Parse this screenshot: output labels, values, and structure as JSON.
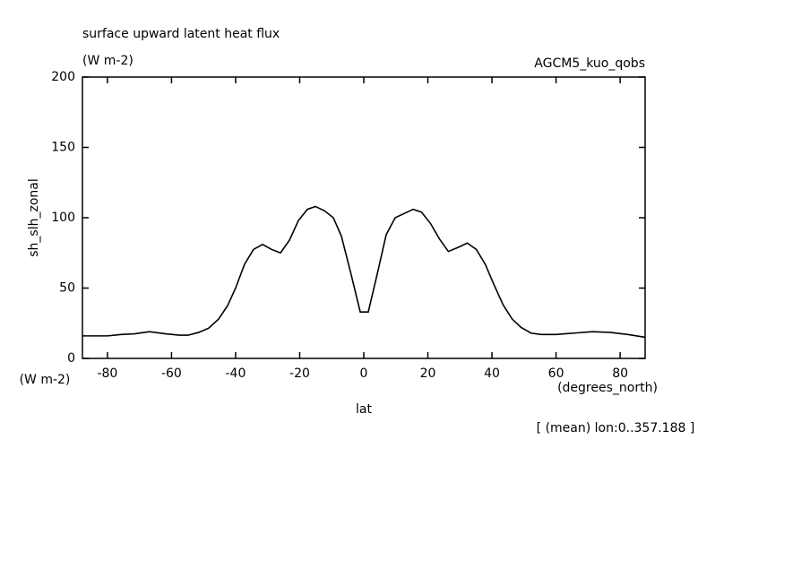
{
  "chart_data": {
    "type": "line",
    "title": "surface upward latent heat flux",
    "subtitle": "(W m-2)",
    "dataset": "AGCM5_kuo_qobs",
    "y_label": "sh_slh_zonal",
    "y_units": "(W m-2)",
    "x_label": "lat",
    "x_units": "(degrees_north)",
    "annotation": "[ (mean) lon:0..357.188 ]",
    "x": [
      -87.8,
      -80,
      -75.8,
      -71.6,
      -66.9,
      -61.8,
      -57.6,
      -54.8,
      -51.5,
      -48.4,
      -45.3,
      -42.5,
      -40,
      -37.2,
      -34.4,
      -31.6,
      -28.8,
      -26,
      -23.2,
      -20.4,
      -17.6,
      -15.1,
      -12.3,
      -9.5,
      -7,
      -4.2,
      -1.1,
      1.4,
      4.2,
      7,
      9.8,
      12.6,
      15.4,
      18,
      20.8,
      23.6,
      26.4,
      29.5,
      32.3,
      35.1,
      37.9,
      40.7,
      43.5,
      46.3,
      49.1,
      52.2,
      55.3,
      60,
      65.6,
      71.3,
      76.8,
      82.4,
      87.8
    ],
    "series": [
      {
        "name": "sh_slh_zonal",
        "color": "#000000",
        "values": [
          16,
          16,
          17,
          17.5,
          19,
          17.5,
          16.5,
          16.5,
          18.5,
          21.5,
          28,
          37.5,
          50,
          67,
          77.5,
          81,
          77.5,
          75,
          84,
          98,
          106,
          108,
          105,
          100,
          87,
          62,
          33,
          33,
          60,
          88,
          100,
          103,
          106,
          104,
          96,
          85,
          76,
          79,
          82,
          77.5,
          67,
          52,
          38,
          28,
          22,
          18,
          17,
          17,
          18,
          19,
          18.5,
          17,
          15
        ]
      }
    ],
    "xlim": [
      -87.8,
      87.8
    ],
    "ylim": [
      0,
      200
    ],
    "xticks": [
      -80,
      -60,
      -40,
      -20,
      0,
      20,
      40,
      60,
      80
    ],
    "yticks": [
      0,
      50,
      100,
      150,
      200
    ]
  }
}
